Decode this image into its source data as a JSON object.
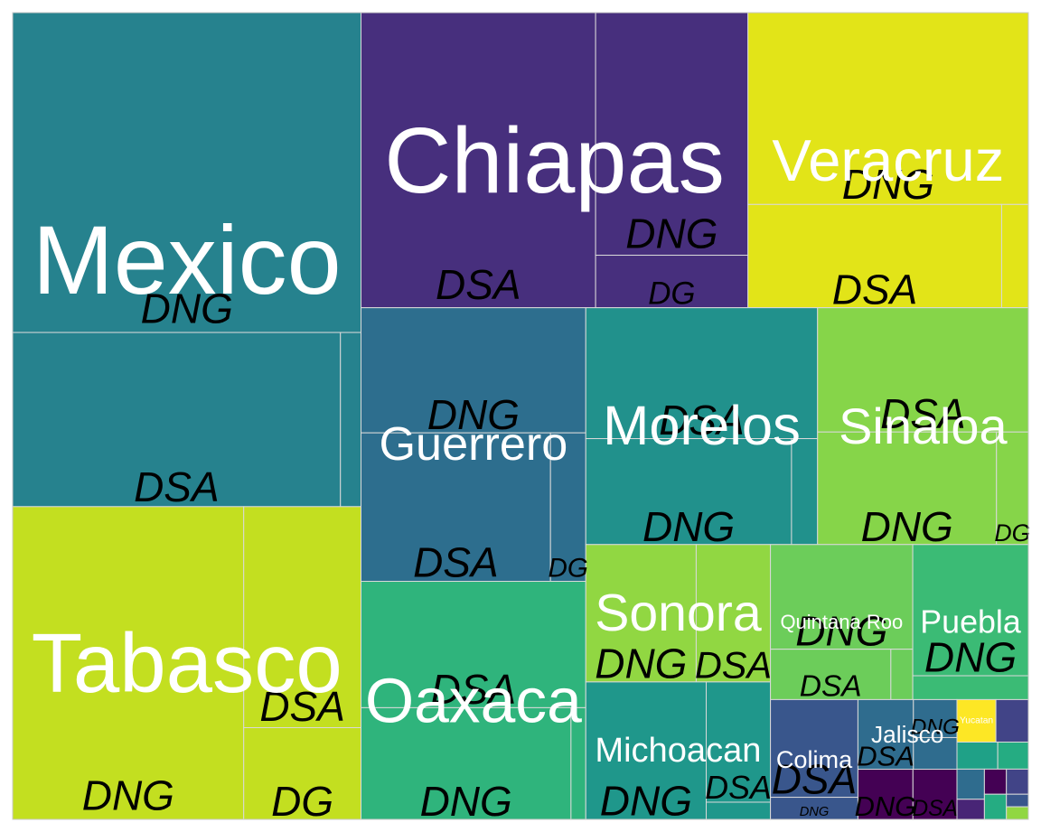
{
  "chart_data": {
    "type": "treemap",
    "colors": {
      "tabasco": "#c3df20",
      "mexico": "#26828e",
      "sinaloa": "#86d549",
      "morelos": "#21918c",
      "guerrero": "#2d6e8e",
      "oaxaca": "#2fb47c",
      "chiapas": "#472f7d",
      "veracruz": "#e2e418",
      "puebla": "#3bbb75",
      "quintana": "#6ccd5a",
      "sonora": "#91d742",
      "michoacan": "#1f978b",
      "colima": "#39568c",
      "jalisco": "#2f6c8e",
      "yucatan": "#fde725",
      "darkpurple": "#440154",
      "purple2": "#482576",
      "slate": "#414487",
      "teal2": "#1fa187",
      "green2": "#25ac82"
    },
    "groups": [
      {
        "name": "Mexico",
        "color": "mexico",
        "subs": [
          {
            "label": "DNG",
            "value": 404,
            "color": "mexico"
          },
          {
            "label": "DSA",
            "value": 207,
            "color": "mexico"
          },
          {
            "label": "",
            "value": 13,
            "color": "mexico"
          }
        ]
      },
      {
        "name": "Tabasco",
        "color": "tabasco",
        "subs": [
          {
            "label": "DNG",
            "value": 262,
            "color": "tabasco"
          },
          {
            "label": "DSA",
            "value": 94,
            "color": "tabasco"
          },
          {
            "label": "DG",
            "value": 39,
            "color": "tabasco"
          }
        ]
      },
      {
        "name": "Chiapas",
        "color": "chiapas",
        "subs": [
          {
            "label": "DSA",
            "value": 251,
            "color": "chiapas"
          },
          {
            "label": "DNG",
            "value": 134,
            "color": "chiapas"
          },
          {
            "label": "DG",
            "value": 29,
            "color": "chiapas"
          }
        ]
      },
      {
        "name": "Veracruz",
        "color": "veracruz",
        "subs": [
          {
            "label": "DNG",
            "value": 195,
            "color": "veracruz"
          },
          {
            "label": "DSA",
            "value": 95,
            "color": "veracruz"
          },
          {
            "label": "",
            "value": 10,
            "color": "veracruz"
          }
        ]
      },
      {
        "name": "Guerrero",
        "color": "guerrero",
        "subs": [
          {
            "label": "DNG",
            "value": 102,
            "color": "guerrero"
          },
          {
            "label": "DSA",
            "value": 102,
            "color": "guerrero"
          },
          {
            "label": "DG",
            "value": 19,
            "color": "guerrero"
          }
        ]
      },
      {
        "name": "Oaxaca",
        "color": "oaxaca",
        "subs": [
          {
            "label": "DSA",
            "value": 103,
            "color": "oaxaca"
          },
          {
            "label": "DNG",
            "value": 85,
            "color": "oaxaca"
          },
          {
            "label": "",
            "value": 6,
            "color": "oaxaca"
          }
        ]
      },
      {
        "name": "Morelos",
        "color": "morelos",
        "subs": [
          {
            "label": "DSA",
            "value": 110,
            "color": "morelos"
          },
          {
            "label": "DNG",
            "value": 79,
            "color": "morelos"
          },
          {
            "label": "",
            "value": 10,
            "color": "morelos"
          }
        ]
      },
      {
        "name": "Sinaloa",
        "color": "sinaloa",
        "subs": [
          {
            "label": "DSA",
            "value": 95,
            "color": "sinaloa"
          },
          {
            "label": "DNG",
            "value": 73,
            "color": "sinaloa"
          },
          {
            "label": "DG",
            "value": 13,
            "color": "sinaloa"
          }
        ]
      },
      {
        "name": "Sonora",
        "color": "sonora",
        "subs": [
          {
            "label": "DNG",
            "value": 55,
            "color": "sonora"
          },
          {
            "label": "DSA",
            "value": 37,
            "color": "sonora"
          }
        ]
      },
      {
        "name": "Michoacan",
        "color": "michoacan",
        "subs": [
          {
            "label": "DNG",
            "value": 60,
            "color": "michoacan"
          },
          {
            "label": "DSA",
            "value": 28,
            "color": "michoacan"
          },
          {
            "label": "",
            "value": 4,
            "color": "michoacan"
          }
        ]
      },
      {
        "name": "Quintana Roo",
        "color": "quintana",
        "subs": [
          {
            "label": "DNG",
            "value": 54,
            "color": "quintana"
          },
          {
            "label": "DSA",
            "value": 22,
            "color": "quintana"
          },
          {
            "label": "",
            "value": 4,
            "color": "quintana"
          }
        ]
      },
      {
        "name": "Puebla",
        "color": "puebla",
        "subs": [
          {
            "label": "DNG",
            "value": 55,
            "color": "puebla"
          },
          {
            "label": "",
            "value": 10,
            "color": "puebla"
          }
        ]
      },
      {
        "name": "Colima",
        "color": "colima",
        "subs": [
          {
            "label": "DSA",
            "value": 31,
            "color": "colima"
          },
          {
            "label": "DNG",
            "value": 7,
            "color": "colima"
          }
        ]
      },
      {
        "name": "Jalisco",
        "color": "jalisco",
        "subs": [
          {
            "label": "DSA",
            "value": 14,
            "color": "jalisco"
          },
          {
            "label": "DNG",
            "value": 6,
            "color": "jalisco"
          },
          {
            "label": "",
            "value": 5,
            "color": "jalisco"
          }
        ]
      },
      {
        "name": "",
        "color": "darkpurple",
        "subs": [
          {
            "label": "DNG",
            "value": 10,
            "color": "darkpurple"
          },
          {
            "label": "DSA",
            "value": 8,
            "color": "darkpurple"
          }
        ]
      },
      {
        "name": "Yucatan",
        "color": "yucatan",
        "subs": [
          {
            "label": "",
            "value": 6,
            "color": "yucatan"
          }
        ]
      },
      {
        "name": "",
        "color": "slate",
        "subs": [
          {
            "label": "",
            "value": 5,
            "color": "slate"
          }
        ]
      },
      {
        "name": "",
        "color": "teal2",
        "subs": [
          {
            "label": "",
            "value": 4,
            "color": "teal2"
          }
        ]
      },
      {
        "name": "",
        "color": "green2",
        "subs": [
          {
            "label": "",
            "value": 3,
            "color": "green2"
          }
        ]
      },
      {
        "name": "",
        "color": "jalisco",
        "subs": [
          {
            "label": "",
            "value": 3,
            "color": "jalisco"
          }
        ]
      },
      {
        "name": "",
        "color": "purple2",
        "subs": [
          {
            "label": "",
            "value": 2,
            "color": "purple2"
          }
        ]
      },
      {
        "name": "",
        "color": "darkpurple",
        "subs": [
          {
            "label": "",
            "value": 2,
            "color": "darkpurple"
          }
        ]
      },
      {
        "name": "",
        "color": "slate",
        "subs": [
          {
            "label": "",
            "value": 2,
            "color": "slate"
          }
        ]
      },
      {
        "name": "",
        "color": "green2",
        "subs": [
          {
            "label": "",
            "value": 2,
            "color": "green2"
          }
        ]
      },
      {
        "name": "",
        "color": "colima",
        "subs": [
          {
            "label": "",
            "value": 1,
            "color": "colima"
          }
        ]
      },
      {
        "name": "",
        "color": "sonora",
        "subs": [
          {
            "label": "",
            "value": 1,
            "color": "sonora"
          }
        ]
      }
    ]
  }
}
